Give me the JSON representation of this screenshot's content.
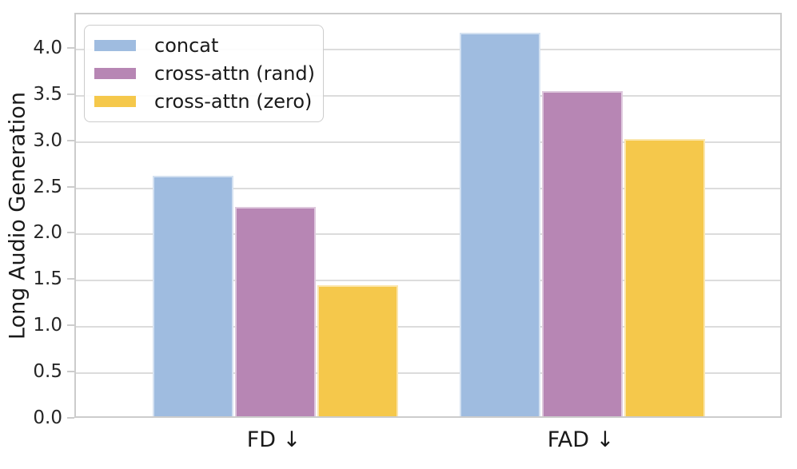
{
  "figure": {
    "background": "#ffffff",
    "grid_color": "#dcdcdc",
    "spine_color": "#cccccc",
    "text_color": "#262626"
  },
  "chart_data": {
    "type": "bar",
    "title": "",
    "xlabel": "",
    "ylabel": "Long Audio Generation",
    "categories": [
      "FD ↓",
      "FAD ↓"
    ],
    "series": [
      {
        "name": "concat",
        "color": "#9fbce0",
        "values": [
          2.6,
          4.15
        ]
      },
      {
        "name": "cross-attn (rand)",
        "color": "#b786b4",
        "values": [
          2.26,
          3.52
        ]
      },
      {
        "name": "cross-attn (zero)",
        "color": "#f5c84b",
        "values": [
          1.42,
          3.0
        ]
      }
    ],
    "ylim": [
      0,
      4.38
    ],
    "yticks": [
      0.0,
      0.5,
      1.0,
      1.5,
      2.0,
      2.5,
      3.0,
      3.5,
      4.0
    ],
    "ytick_labels": [
      "0.0",
      "0.5",
      "1.0",
      "1.5",
      "2.0",
      "2.5",
      "3.0",
      "3.5",
      "4.0"
    ],
    "grid": "horizontal",
    "legend_position": "upper-left"
  }
}
